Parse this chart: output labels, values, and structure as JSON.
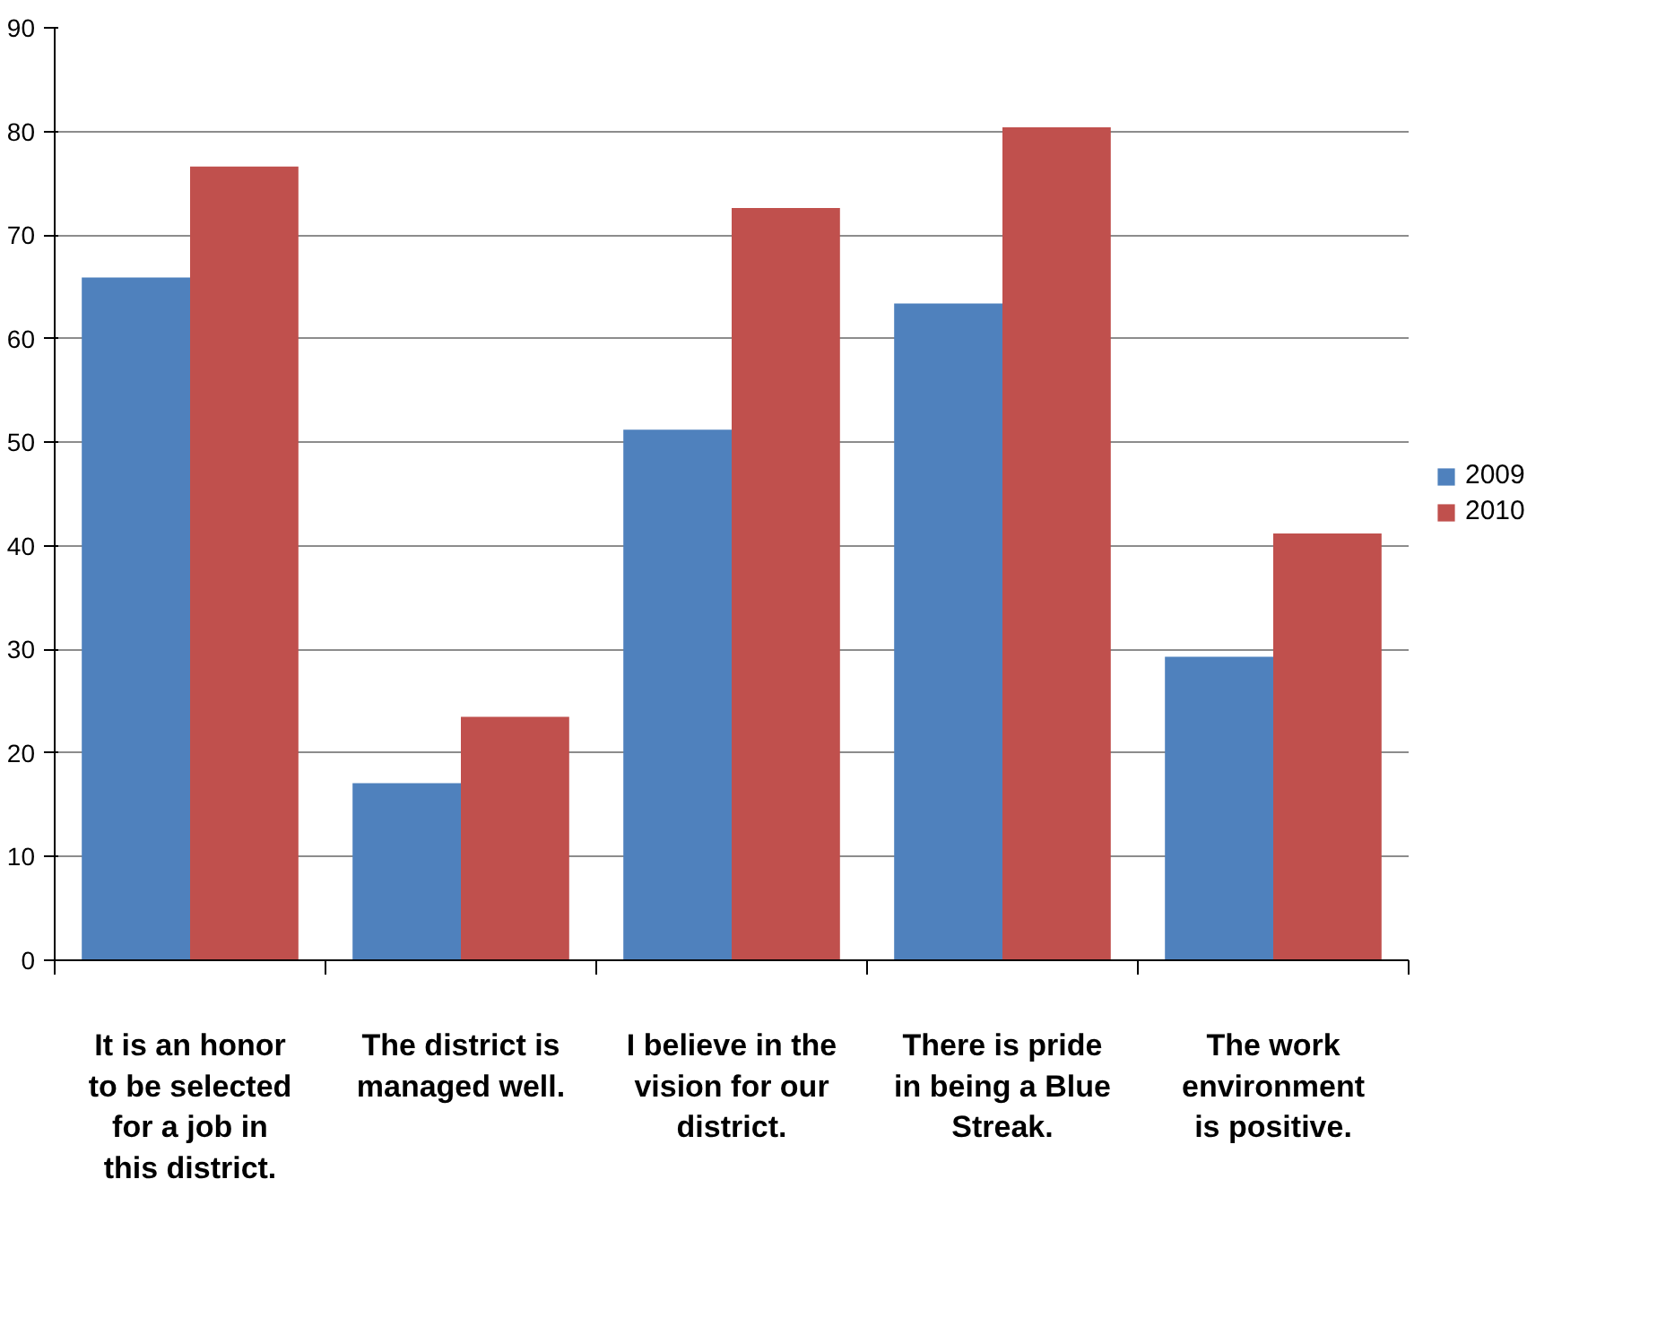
{
  "chart_data": {
    "type": "bar",
    "categories": [
      "It is an honor\nto be selected\nfor a job in\nthis district.",
      "The district is\nmanaged well.",
      "I believe in the\nvision for our\ndistrict.",
      "There is pride\nin being a Blue\nStreak.",
      "The work\nenvironment\nis positive."
    ],
    "series": [
      {
        "name": "2009",
        "color": "#4f81bd",
        "values": [
          65.9,
          17.1,
          51.2,
          63.4,
          29.3
        ]
      },
      {
        "name": "2010",
        "color": "#c0504d",
        "values": [
          76.6,
          23.5,
          72.6,
          80.4,
          41.2
        ]
      }
    ],
    "ylim": [
      0,
      90
    ],
    "yticks": [
      0,
      10,
      20,
      30,
      40,
      50,
      60,
      70,
      80,
      90
    ],
    "grid": "y",
    "legend": "right"
  }
}
